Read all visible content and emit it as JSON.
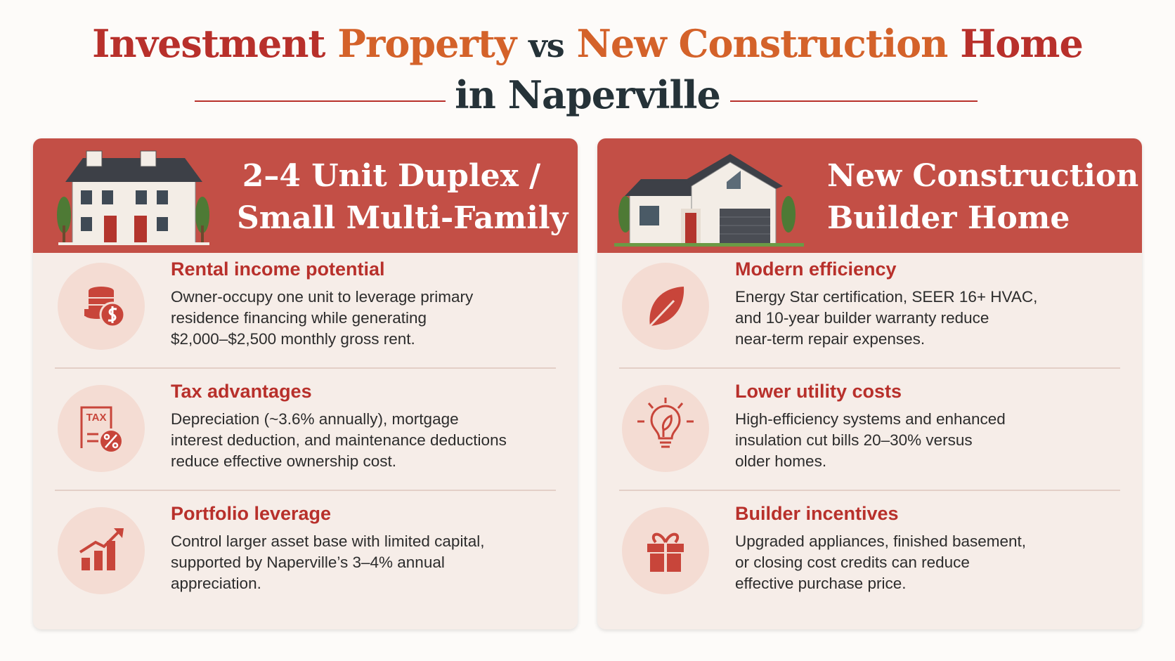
{
  "title": {
    "part1a": "Investment",
    "part1b": "Property",
    "vs": "vs",
    "part2a": "New Construction",
    "part2b": "Home",
    "line2": "in Naperville"
  },
  "columns": [
    {
      "heading": [
        "2–4 Unit Duplex /",
        "Small Multi-Family"
      ],
      "items": [
        {
          "title": "Rental income potential",
          "lines": [
            "Owner-occupy one unit to leverage primary",
            "residence financing while generating",
            "$2,000–$2,500 monthly gross rent."
          ]
        },
        {
          "title": "Tax advantages",
          "icon_label": "TAX",
          "lines": [
            "Depreciation (~3.6% annually), mortgage",
            "interest deduction, and maintenance deductions",
            "reduce effective ownership cost."
          ]
        },
        {
          "title": "Portfolio leverage",
          "lines": [
            "Control larger asset base with limited capital,",
            "supported by Naperville’s 3–4% annual",
            "appreciation."
          ]
        }
      ]
    },
    {
      "heading": [
        "New Construction",
        "Builder Home"
      ],
      "items": [
        {
          "title": "Modern efficiency",
          "lines": [
            "Energy Star certification, SEER 16+ HVAC,",
            "and 10-year builder warranty reduce",
            "near-term repair expenses."
          ]
        },
        {
          "title": "Lower utility costs",
          "lines": [
            "High-efficiency systems and enhanced",
            "insulation cut bills 20–30% versus",
            "older homes."
          ]
        },
        {
          "title": "Builder incentives",
          "lines": [
            "Upgraded appliances, finished basement,",
            "or closing cost credits can reduce",
            "effective purchase price."
          ]
        }
      ]
    }
  ]
}
